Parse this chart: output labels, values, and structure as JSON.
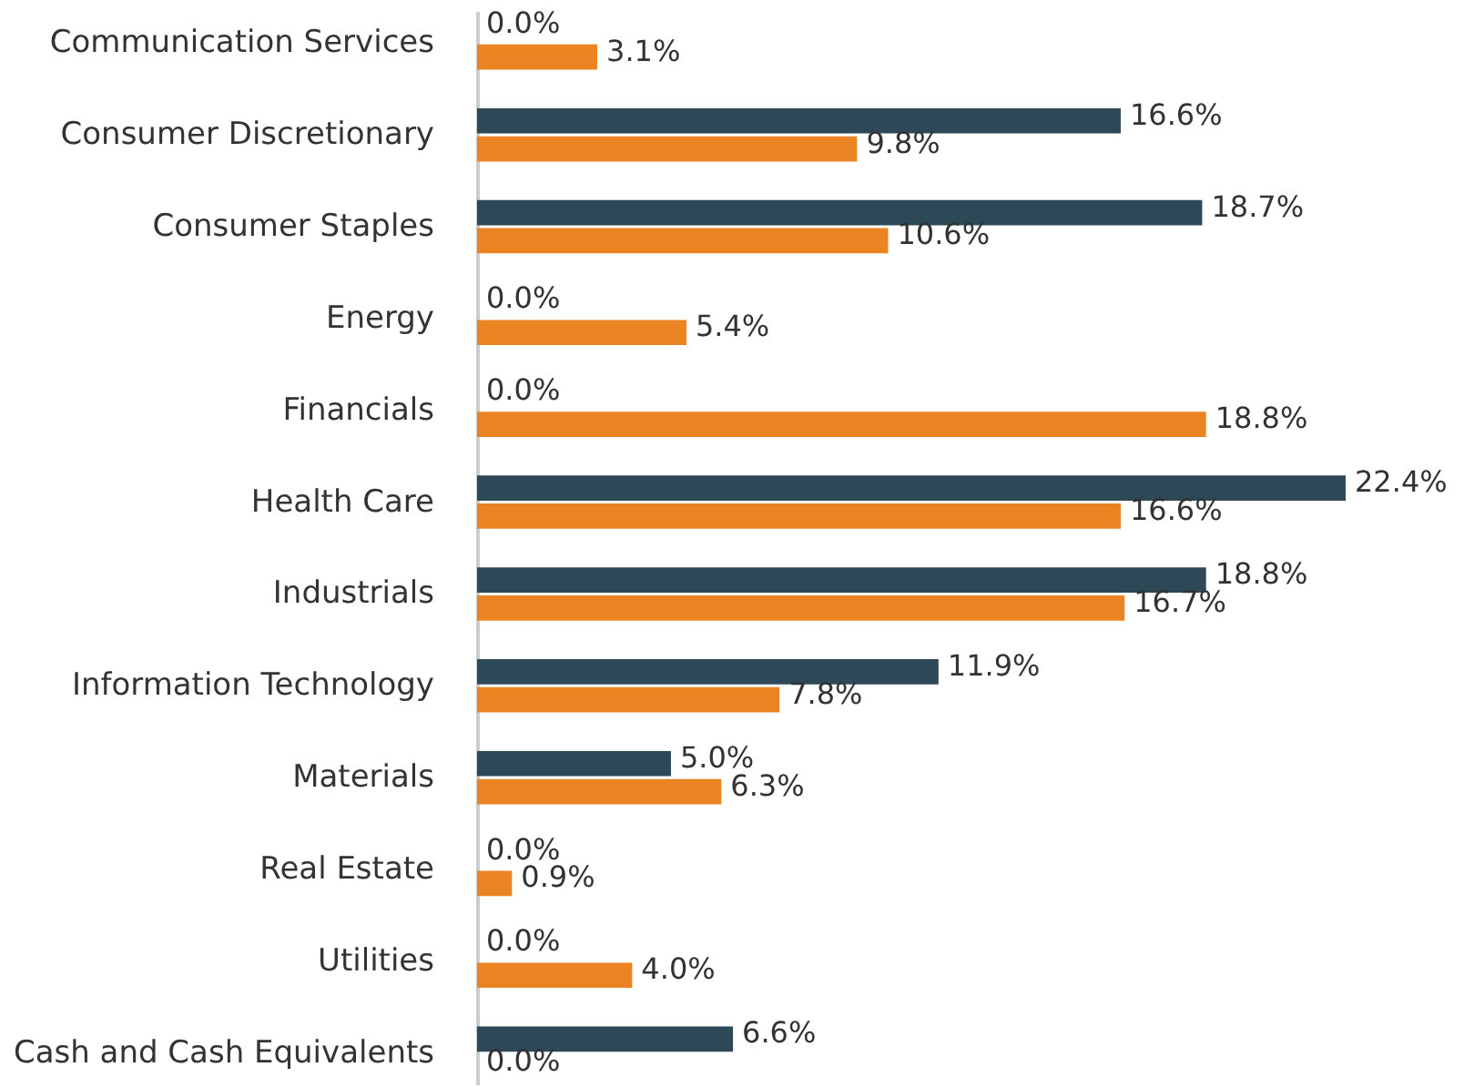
{
  "chart_data": {
    "type": "bar",
    "orientation": "horizontal",
    "categories": [
      "Communication Services",
      "Consumer Discretionary",
      "Consumer Staples",
      "Energy",
      "Financials",
      "Health Care",
      "Industrials",
      "Information Technology",
      "Materials",
      "Real Estate",
      "Utilities",
      "Cash and Cash Equivalents"
    ],
    "series": [
      {
        "color": "#2d4857",
        "values": [
          0.0,
          16.6,
          18.7,
          0.0,
          0.0,
          22.4,
          18.8,
          11.9,
          5.0,
          0.0,
          0.0,
          6.6
        ],
        "value_labels": [
          "0.0%",
          "16.6%",
          "18.7%",
          "0.0%",
          "0.0%",
          "22.4%",
          "18.8%",
          "11.9%",
          "5.0%",
          "0.0%",
          "0.0%",
          "6.6%"
        ]
      },
      {
        "color": "#ea8423",
        "values": [
          3.1,
          9.8,
          10.6,
          5.4,
          18.8,
          16.6,
          16.7,
          7.8,
          6.3,
          0.9,
          4.0,
          0.0
        ],
        "value_labels": [
          "3.1%",
          "9.8%",
          "10.6%",
          "5.4%",
          "18.8%",
          "16.6%",
          "16.7%",
          "7.8%",
          "6.3%",
          "0.9%",
          "4.0%",
          "0.0%"
        ]
      }
    ],
    "grid": false,
    "legend": false
  }
}
